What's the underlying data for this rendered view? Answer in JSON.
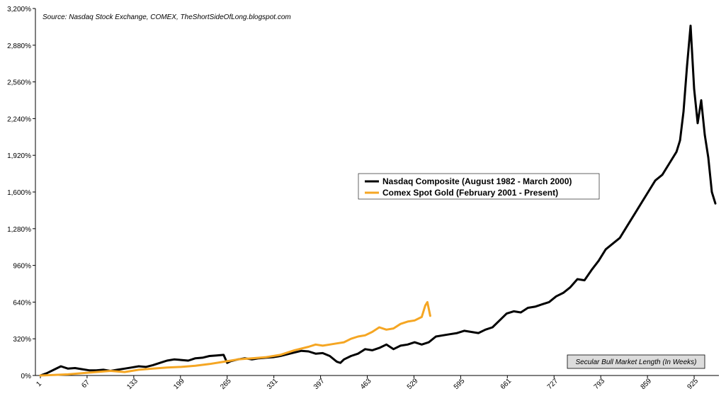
{
  "chart_data": {
    "type": "line",
    "source": "Source: Nasdaq Stock Exchange, COMEX, TheShortSideOfLong.blogspot.com",
    "xlabel": "Secular Bull Market Length (In Weeks)",
    "ylabel": "",
    "xlim": [
      1,
      955
    ],
    "ylim": [
      0,
      3200
    ],
    "x_ticks": [
      "1",
      "67",
      "133",
      "199",
      "265",
      "331",
      "397",
      "463",
      "529",
      "595",
      "661",
      "727",
      "793",
      "859",
      "925"
    ],
    "x_tick_values": [
      1,
      67,
      133,
      199,
      265,
      331,
      397,
      463,
      529,
      595,
      661,
      727,
      793,
      859,
      925
    ],
    "y_ticks": [
      "0%",
      "320%",
      "640%",
      "960%",
      "1,280%",
      "1,600%",
      "1,920%",
      "2,240%",
      "2,560%",
      "2,880%",
      "3,200%"
    ],
    "y_tick_values": [
      0,
      320,
      640,
      960,
      1280,
      1600,
      1920,
      2240,
      2560,
      2880,
      3200
    ],
    "legend_position": "center",
    "series": [
      {
        "name": "Nasdaq Composite (August 1982 - March 2000)",
        "color": "#000000",
        "x": [
          1,
          10,
          20,
          30,
          40,
          50,
          60,
          70,
          80,
          90,
          100,
          110,
          120,
          130,
          140,
          150,
          160,
          170,
          180,
          190,
          200,
          210,
          220,
          230,
          240,
          250,
          260,
          265,
          270,
          280,
          290,
          300,
          310,
          320,
          330,
          340,
          350,
          360,
          370,
          380,
          390,
          400,
          410,
          420,
          425,
          430,
          440,
          450,
          460,
          470,
          480,
          490,
          500,
          510,
          520,
          530,
          540,
          550,
          560,
          570,
          580,
          590,
          600,
          610,
          620,
          630,
          640,
          650,
          660,
          670,
          680,
          690,
          700,
          710,
          720,
          730,
          740,
          750,
          760,
          770,
          780,
          790,
          800,
          810,
          820,
          830,
          840,
          850,
          860,
          870,
          880,
          890,
          900,
          905,
          910,
          915,
          920,
          925,
          930,
          935,
          940,
          945,
          950,
          955
        ],
        "values": [
          0,
          20,
          50,
          80,
          60,
          65,
          55,
          45,
          45,
          50,
          40,
          50,
          60,
          70,
          80,
          75,
          90,
          110,
          130,
          140,
          135,
          130,
          150,
          155,
          170,
          175,
          180,
          110,
          125,
          140,
          150,
          140,
          150,
          155,
          160,
          170,
          185,
          200,
          215,
          210,
          190,
          195,
          170,
          120,
          110,
          140,
          170,
          190,
          230,
          220,
          240,
          270,
          230,
          260,
          270,
          290,
          270,
          290,
          340,
          350,
          360,
          370,
          390,
          380,
          370,
          400,
          420,
          480,
          540,
          560,
          550,
          590,
          600,
          620,
          640,
          690,
          720,
          770,
          840,
          830,
          920,
          1000,
          1100,
          1150,
          1200,
          1300,
          1400,
          1500,
          1600,
          1700,
          1750,
          1850,
          1950,
          2050,
          2300,
          2700,
          3050,
          2500,
          2200,
          2400,
          2100,
          1900,
          1600,
          1500
        ]
      },
      {
        "name": "Comex Spot Gold (February 2001 - Present)",
        "color": "#f5a623",
        "x": [
          1,
          20,
          40,
          60,
          80,
          100,
          120,
          140,
          160,
          180,
          200,
          220,
          240,
          260,
          270,
          280,
          300,
          320,
          340,
          360,
          380,
          390,
          400,
          410,
          420,
          430,
          440,
          450,
          460,
          470,
          480,
          490,
          500,
          510,
          520,
          530,
          540,
          545,
          548,
          550,
          552
        ],
        "values": [
          0,
          5,
          10,
          20,
          30,
          40,
          30,
          50,
          60,
          70,
          75,
          85,
          100,
          120,
          130,
          140,
          150,
          160,
          180,
          220,
          250,
          270,
          260,
          270,
          280,
          290,
          320,
          340,
          350,
          380,
          420,
          400,
          410,
          450,
          470,
          480,
          510,
          610,
          640,
          580,
          520
        ]
      }
    ]
  }
}
